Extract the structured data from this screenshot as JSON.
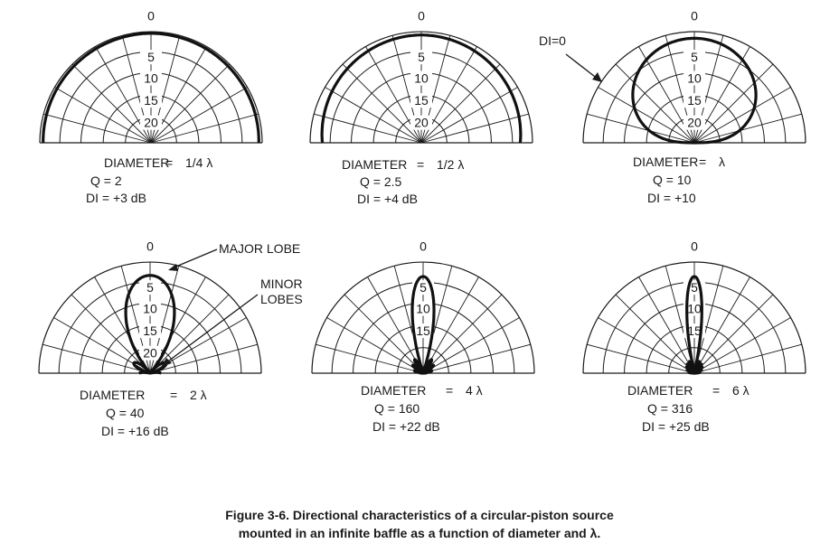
{
  "figure": {
    "caption_line1": "Figure 3-6. Directional characteristics of a circular-piston source",
    "caption_line2": "mounted in an infinite baffle as a function of diameter and λ."
  },
  "annotations": {
    "di_zero": "DI=0",
    "major_lobe": "MAJOR LOBE",
    "minor_lobes_line1": "MINOR",
    "minor_lobes_line2": "LOBES"
  },
  "panels": [
    {
      "id": "quarter",
      "ring_labels": [
        "0",
        "5",
        "10",
        "15",
        "20"
      ],
      "diameter_label": "DIAMETER",
      "diameter_value": "1/4 λ",
      "q_text": "Q = 2",
      "di_text": "DI = +3 dB"
    },
    {
      "id": "half",
      "ring_labels": [
        "0",
        "5",
        "10",
        "15",
        "20"
      ],
      "diameter_label": "DIAMETER",
      "diameter_value": "1/2 λ",
      "q_text": "Q = 2.5",
      "di_text": "DI = +4 dB"
    },
    {
      "id": "one",
      "ring_labels": [
        "0",
        "5",
        "10",
        "15",
        "20"
      ],
      "diameter_label": "DIAMETER",
      "diameter_value": "λ",
      "q_text": "Q = 10",
      "di_text": "DI = +10"
    },
    {
      "id": "two",
      "ring_labels": [
        "0",
        "5",
        "10",
        "15",
        "20"
      ],
      "diameter_label": "DIAMETER",
      "diameter_value": "2 λ",
      "q_text": "Q = 40",
      "di_text": "DI = +16 dB"
    },
    {
      "id": "four",
      "ring_labels": [
        "0",
        "5",
        "10",
        "15"
      ],
      "diameter_label": "DIAMETER",
      "diameter_value": "4 λ",
      "q_text": "Q = 160",
      "di_text": "DI = +22 dB"
    },
    {
      "id": "six",
      "ring_labels": [
        "0",
        "5",
        "10",
        "15"
      ],
      "diameter_label": "DIAMETER",
      "diameter_value": "6 λ",
      "q_text": "Q = 316",
      "di_text": "DI = +25 dB"
    }
  ]
}
